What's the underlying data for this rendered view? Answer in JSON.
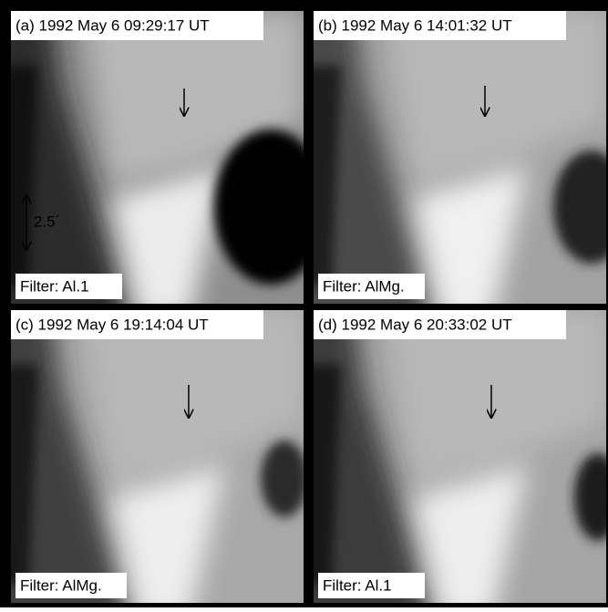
{
  "panels": [
    {
      "label": "(a) 1992 May 6 09:29:17 UT",
      "filter": "Filter: Al.1"
    },
    {
      "label": "(b) 1992 May 6 14:01:32 UT",
      "filter": "Filter: AlMg."
    },
    {
      "label": "(c) 1992 May 6 19:14:04 UT",
      "filter": "Filter: AlMg."
    },
    {
      "label": "(d) 1992 May 6 20:33:02 UT",
      "filter": "Filter: Al.1"
    }
  ],
  "scale": "2.5´"
}
